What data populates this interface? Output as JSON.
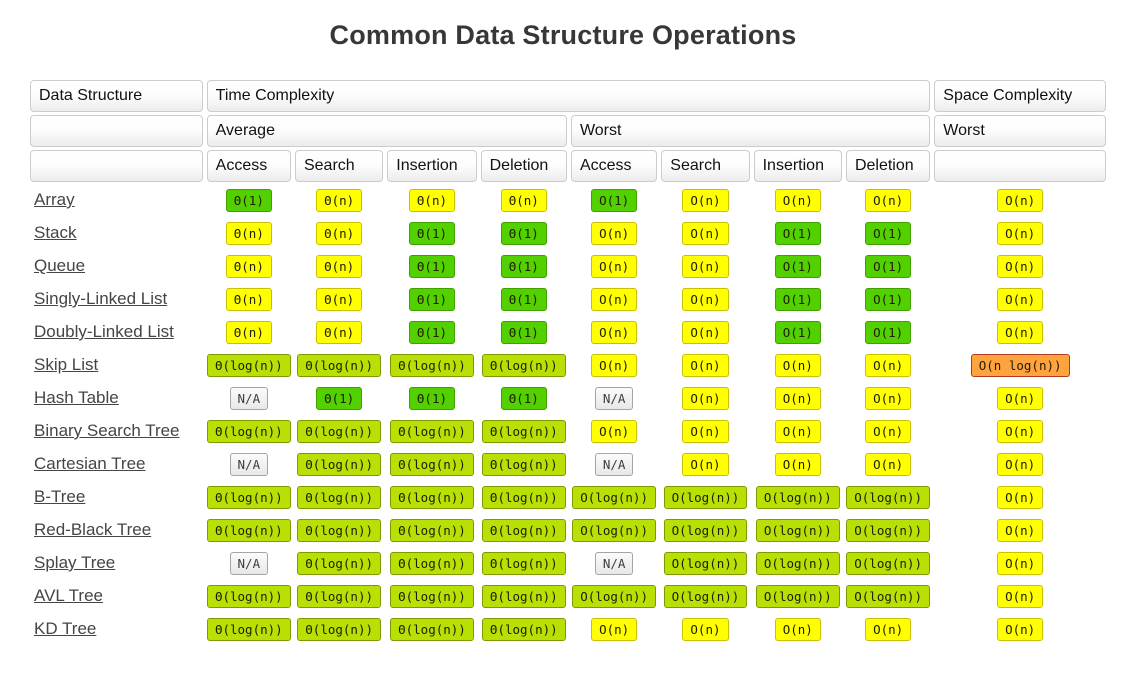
{
  "title": "Common Data Structure Operations",
  "header": {
    "data_structure": "Data Structure",
    "time_complexity": "Time Complexity",
    "space_complexity": "Space Complexity",
    "average": "Average",
    "worst": "Worst",
    "space_worst": "Worst",
    "ops": [
      "Access",
      "Search",
      "Insertion",
      "Deletion"
    ]
  },
  "palette": {
    "green": {
      "bg": "#53d000",
      "border": "#3fa000"
    },
    "yellow": {
      "bg": "#ffff00",
      "border": "#c9c100"
    },
    "yellowgreen": {
      "bg": "#b8e004",
      "border": "#7f9a00"
    },
    "orange": {
      "bg": "#ffa33e",
      "border": "#b23b22"
    },
    "gray": {
      "bg": "#e8e8e8",
      "border": "#a5a5a5"
    }
  },
  "table": {
    "rows": [
      {
        "name": "Array",
        "cells": [
          {
            "text": "Θ(1)",
            "color": "green"
          },
          {
            "text": "Θ(n)",
            "color": "yellow"
          },
          {
            "text": "Θ(n)",
            "color": "yellow"
          },
          {
            "text": "Θ(n)",
            "color": "yellow"
          },
          {
            "text": "O(1)",
            "color": "green"
          },
          {
            "text": "O(n)",
            "color": "yellow"
          },
          {
            "text": "O(n)",
            "color": "yellow"
          },
          {
            "text": "O(n)",
            "color": "yellow"
          },
          {
            "text": "O(n)",
            "color": "yellow"
          }
        ]
      },
      {
        "name": "Stack",
        "cells": [
          {
            "text": "Θ(n)",
            "color": "yellow"
          },
          {
            "text": "Θ(n)",
            "color": "yellow"
          },
          {
            "text": "Θ(1)",
            "color": "green"
          },
          {
            "text": "Θ(1)",
            "color": "green"
          },
          {
            "text": "O(n)",
            "color": "yellow"
          },
          {
            "text": "O(n)",
            "color": "yellow"
          },
          {
            "text": "O(1)",
            "color": "green"
          },
          {
            "text": "O(1)",
            "color": "green"
          },
          {
            "text": "O(n)",
            "color": "yellow"
          }
        ]
      },
      {
        "name": "Queue",
        "cells": [
          {
            "text": "Θ(n)",
            "color": "yellow"
          },
          {
            "text": "Θ(n)",
            "color": "yellow"
          },
          {
            "text": "Θ(1)",
            "color": "green"
          },
          {
            "text": "Θ(1)",
            "color": "green"
          },
          {
            "text": "O(n)",
            "color": "yellow"
          },
          {
            "text": "O(n)",
            "color": "yellow"
          },
          {
            "text": "O(1)",
            "color": "green"
          },
          {
            "text": "O(1)",
            "color": "green"
          },
          {
            "text": "O(n)",
            "color": "yellow"
          }
        ]
      },
      {
        "name": "Singly-Linked List",
        "cells": [
          {
            "text": "Θ(n)",
            "color": "yellow"
          },
          {
            "text": "Θ(n)",
            "color": "yellow"
          },
          {
            "text": "Θ(1)",
            "color": "green"
          },
          {
            "text": "Θ(1)",
            "color": "green"
          },
          {
            "text": "O(n)",
            "color": "yellow"
          },
          {
            "text": "O(n)",
            "color": "yellow"
          },
          {
            "text": "O(1)",
            "color": "green"
          },
          {
            "text": "O(1)",
            "color": "green"
          },
          {
            "text": "O(n)",
            "color": "yellow"
          }
        ]
      },
      {
        "name": "Doubly-Linked List",
        "cells": [
          {
            "text": "Θ(n)",
            "color": "yellow"
          },
          {
            "text": "Θ(n)",
            "color": "yellow"
          },
          {
            "text": "Θ(1)",
            "color": "green"
          },
          {
            "text": "Θ(1)",
            "color": "green"
          },
          {
            "text": "O(n)",
            "color": "yellow"
          },
          {
            "text": "O(n)",
            "color": "yellow"
          },
          {
            "text": "O(1)",
            "color": "green"
          },
          {
            "text": "O(1)",
            "color": "green"
          },
          {
            "text": "O(n)",
            "color": "yellow"
          }
        ]
      },
      {
        "name": "Skip List",
        "cells": [
          {
            "text": "Θ(log(n))",
            "color": "yellowgreen"
          },
          {
            "text": "Θ(log(n))",
            "color": "yellowgreen"
          },
          {
            "text": "Θ(log(n))",
            "color": "yellowgreen"
          },
          {
            "text": "Θ(log(n))",
            "color": "yellowgreen"
          },
          {
            "text": "O(n)",
            "color": "yellow"
          },
          {
            "text": "O(n)",
            "color": "yellow"
          },
          {
            "text": "O(n)",
            "color": "yellow"
          },
          {
            "text": "O(n)",
            "color": "yellow"
          },
          {
            "text": "O(n log(n))",
            "color": "orange"
          }
        ]
      },
      {
        "name": "Hash Table",
        "cells": [
          {
            "text": "N/A",
            "color": "gray"
          },
          {
            "text": "Θ(1)",
            "color": "green"
          },
          {
            "text": "Θ(1)",
            "color": "green"
          },
          {
            "text": "Θ(1)",
            "color": "green"
          },
          {
            "text": "N/A",
            "color": "gray"
          },
          {
            "text": "O(n)",
            "color": "yellow"
          },
          {
            "text": "O(n)",
            "color": "yellow"
          },
          {
            "text": "O(n)",
            "color": "yellow"
          },
          {
            "text": "O(n)",
            "color": "yellow"
          }
        ]
      },
      {
        "name": "Binary Search Tree",
        "cells": [
          {
            "text": "Θ(log(n))",
            "color": "yellowgreen"
          },
          {
            "text": "Θ(log(n))",
            "color": "yellowgreen"
          },
          {
            "text": "Θ(log(n))",
            "color": "yellowgreen"
          },
          {
            "text": "Θ(log(n))",
            "color": "yellowgreen"
          },
          {
            "text": "O(n)",
            "color": "yellow"
          },
          {
            "text": "O(n)",
            "color": "yellow"
          },
          {
            "text": "O(n)",
            "color": "yellow"
          },
          {
            "text": "O(n)",
            "color": "yellow"
          },
          {
            "text": "O(n)",
            "color": "yellow"
          }
        ]
      },
      {
        "name": "Cartesian Tree",
        "cells": [
          {
            "text": "N/A",
            "color": "gray"
          },
          {
            "text": "Θ(log(n))",
            "color": "yellowgreen"
          },
          {
            "text": "Θ(log(n))",
            "color": "yellowgreen"
          },
          {
            "text": "Θ(log(n))",
            "color": "yellowgreen"
          },
          {
            "text": "N/A",
            "color": "gray"
          },
          {
            "text": "O(n)",
            "color": "yellow"
          },
          {
            "text": "O(n)",
            "color": "yellow"
          },
          {
            "text": "O(n)",
            "color": "yellow"
          },
          {
            "text": "O(n)",
            "color": "yellow"
          }
        ]
      },
      {
        "name": "B-Tree",
        "cells": [
          {
            "text": "Θ(log(n))",
            "color": "yellowgreen"
          },
          {
            "text": "Θ(log(n))",
            "color": "yellowgreen"
          },
          {
            "text": "Θ(log(n))",
            "color": "yellowgreen"
          },
          {
            "text": "Θ(log(n))",
            "color": "yellowgreen"
          },
          {
            "text": "O(log(n))",
            "color": "yellowgreen"
          },
          {
            "text": "O(log(n))",
            "color": "yellowgreen"
          },
          {
            "text": "O(log(n))",
            "color": "yellowgreen"
          },
          {
            "text": "O(log(n))",
            "color": "yellowgreen"
          },
          {
            "text": "O(n)",
            "color": "yellow"
          }
        ]
      },
      {
        "name": "Red-Black Tree",
        "cells": [
          {
            "text": "Θ(log(n))",
            "color": "yellowgreen"
          },
          {
            "text": "Θ(log(n))",
            "color": "yellowgreen"
          },
          {
            "text": "Θ(log(n))",
            "color": "yellowgreen"
          },
          {
            "text": "Θ(log(n))",
            "color": "yellowgreen"
          },
          {
            "text": "O(log(n))",
            "color": "yellowgreen"
          },
          {
            "text": "O(log(n))",
            "color": "yellowgreen"
          },
          {
            "text": "O(log(n))",
            "color": "yellowgreen"
          },
          {
            "text": "O(log(n))",
            "color": "yellowgreen"
          },
          {
            "text": "O(n)",
            "color": "yellow"
          }
        ]
      },
      {
        "name": "Splay Tree",
        "cells": [
          {
            "text": "N/A",
            "color": "gray"
          },
          {
            "text": "Θ(log(n))",
            "color": "yellowgreen"
          },
          {
            "text": "Θ(log(n))",
            "color": "yellowgreen"
          },
          {
            "text": "Θ(log(n))",
            "color": "yellowgreen"
          },
          {
            "text": "N/A",
            "color": "gray"
          },
          {
            "text": "O(log(n))",
            "color": "yellowgreen"
          },
          {
            "text": "O(log(n))",
            "color": "yellowgreen"
          },
          {
            "text": "O(log(n))",
            "color": "yellowgreen"
          },
          {
            "text": "O(n)",
            "color": "yellow"
          }
        ]
      },
      {
        "name": "AVL Tree",
        "cells": [
          {
            "text": "Θ(log(n))",
            "color": "yellowgreen"
          },
          {
            "text": "Θ(log(n))",
            "color": "yellowgreen"
          },
          {
            "text": "Θ(log(n))",
            "color": "yellowgreen"
          },
          {
            "text": "Θ(log(n))",
            "color": "yellowgreen"
          },
          {
            "text": "O(log(n))",
            "color": "yellowgreen"
          },
          {
            "text": "O(log(n))",
            "color": "yellowgreen"
          },
          {
            "text": "O(log(n))",
            "color": "yellowgreen"
          },
          {
            "text": "O(log(n))",
            "color": "yellowgreen"
          },
          {
            "text": "O(n)",
            "color": "yellow"
          }
        ]
      },
      {
        "name": "KD Tree",
        "cells": [
          {
            "text": "Θ(log(n))",
            "color": "yellowgreen"
          },
          {
            "text": "Θ(log(n))",
            "color": "yellowgreen"
          },
          {
            "text": "Θ(log(n))",
            "color": "yellowgreen"
          },
          {
            "text": "Θ(log(n))",
            "color": "yellowgreen"
          },
          {
            "text": "O(n)",
            "color": "yellow"
          },
          {
            "text": "O(n)",
            "color": "yellow"
          },
          {
            "text": "O(n)",
            "color": "yellow"
          },
          {
            "text": "O(n)",
            "color": "yellow"
          },
          {
            "text": "O(n)",
            "color": "yellow"
          }
        ]
      }
    ]
  }
}
